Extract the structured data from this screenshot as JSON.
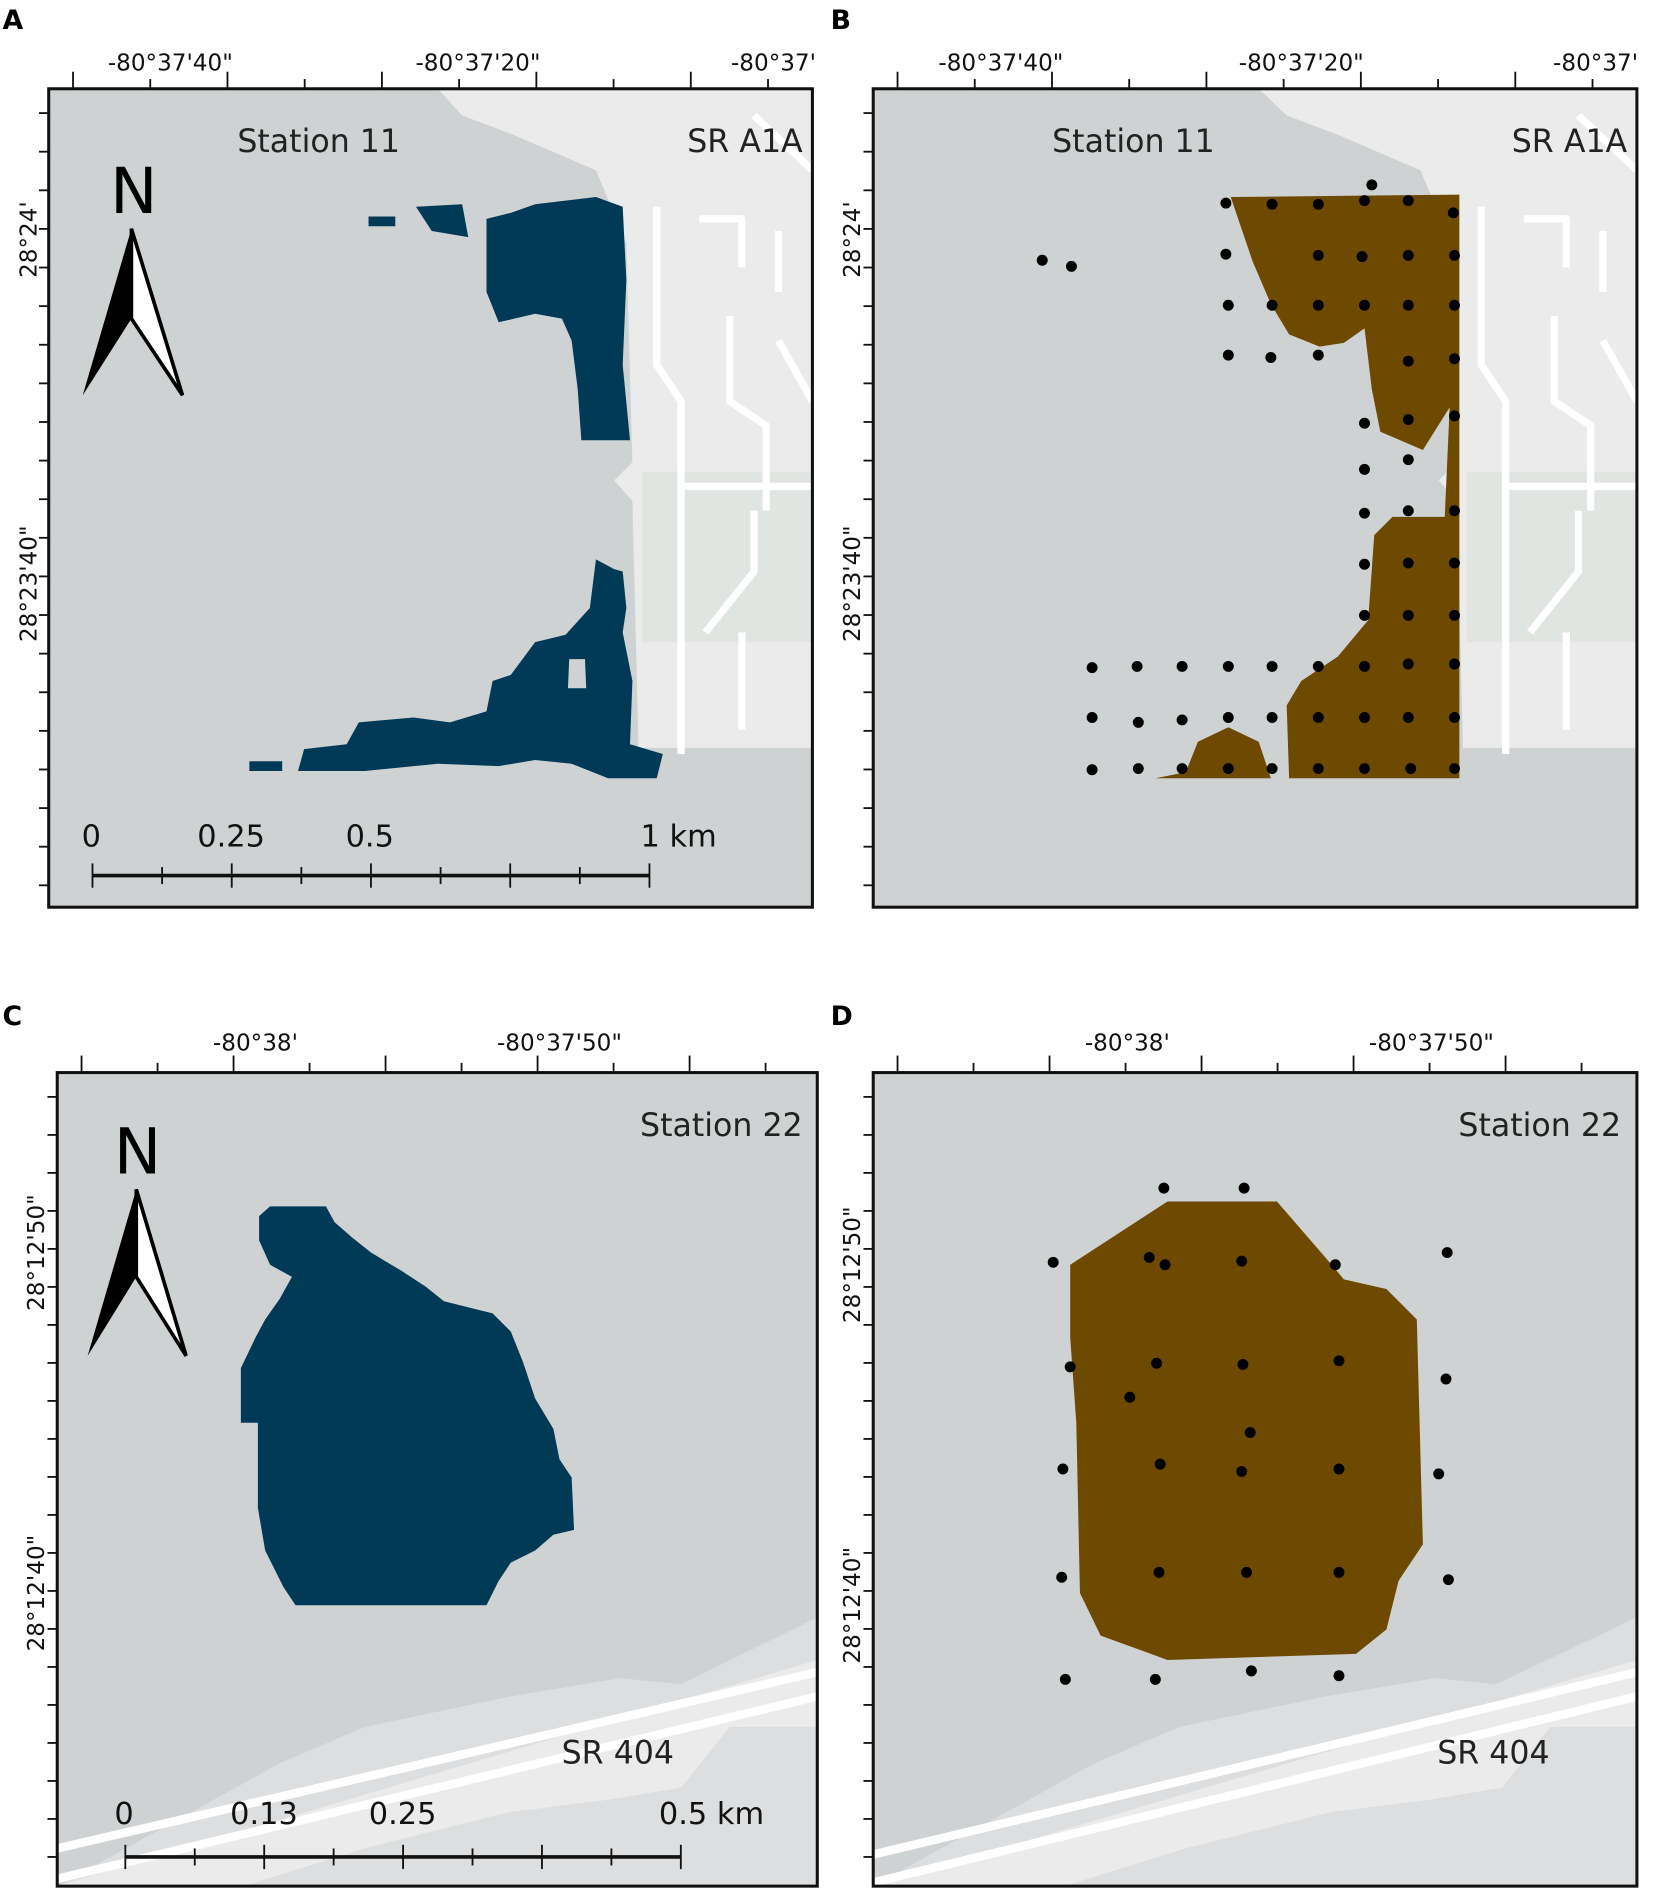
{
  "panels": [
    {
      "letter": "A",
      "top_labels": [
        "-80°37'40\"",
        "-80°37'20\"",
        "-80°37'"
      ],
      "left_labels": [
        "28°24'",
        "28°23'40\""
      ],
      "station": "Station 11",
      "road": "SR A1A",
      "north": "N",
      "scale_labels": [
        "0",
        "0.25",
        "0.5",
        "1 km"
      ]
    },
    {
      "letter": "B",
      "top_labels": [
        "-80°37'40\"",
        "-80°37'20\"",
        "-80°37'"
      ],
      "left_labels": [
        "28°24'",
        "28°23'40\""
      ],
      "station": "Station 11",
      "road": "SR A1A"
    },
    {
      "letter": "C",
      "top_labels": [
        "-80°38'",
        "-80°37'50\""
      ],
      "left_labels": [
        "28°12'50\"",
        "28°12'40\""
      ],
      "station": "Station 22",
      "road": "SR 404",
      "north": "N",
      "scale_labels": [
        "0",
        "0.13",
        "0.25",
        "0.5 km"
      ]
    },
    {
      "letter": "D",
      "top_labels": [
        "-80°38'",
        "-80°37'50\""
      ],
      "left_labels": [
        "28°12'50\"",
        "28°12'40\""
      ],
      "station": "Station 22",
      "road": "SR 404"
    }
  ]
}
